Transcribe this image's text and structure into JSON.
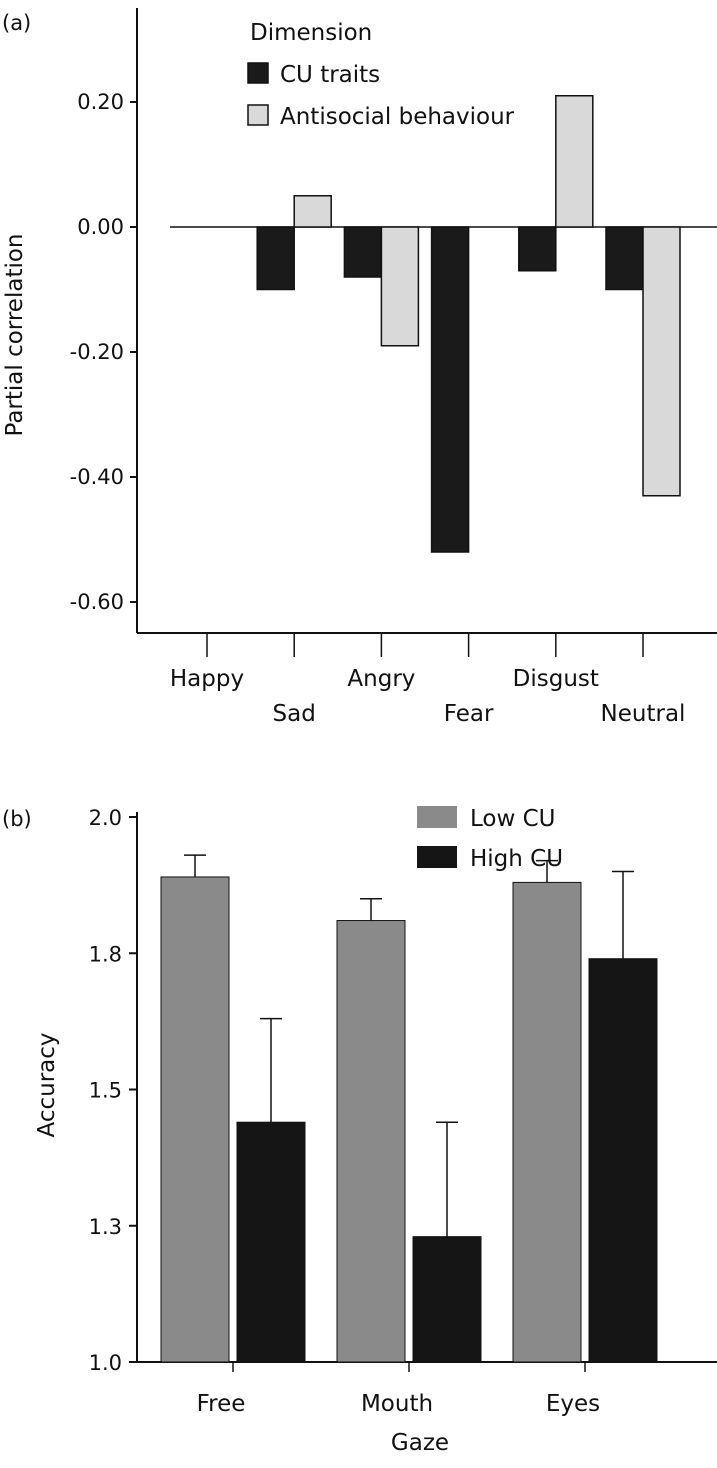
{
  "chart_data": [
    {
      "panel_label": "(a)",
      "type": "bar",
      "ylabel": "Partial correlation",
      "xlabel": "",
      "ylim": [
        -0.66,
        0.33
      ],
      "yticks": [
        "0.20",
        "0.00",
        "-0.20",
        "-0.40",
        "-0.60"
      ],
      "yticks_values": [
        0.2,
        0.0,
        -0.2,
        -0.4,
        -0.6
      ],
      "categories": [
        "Happy",
        "Sad",
        "Angry",
        "Fear",
        "Disgust",
        "Neutral"
      ],
      "legend_title": "Dimension",
      "legend_position": "top-left",
      "series": [
        {
          "name": "CU traits",
          "color": "#1a1a1a",
          "values": [
            0.0,
            -0.1,
            -0.08,
            -0.52,
            -0.07,
            -0.1
          ]
        },
        {
          "name": "Antisocial behaviour",
          "color": "#d9d9d9",
          "values": [
            0.0,
            0.05,
            -0.19,
            0.0,
            0.21,
            -0.43
          ]
        }
      ]
    },
    {
      "panel_label": "(b)",
      "type": "bar",
      "xlabel": "Gaze",
      "ylabel": "Accuracy",
      "ylim": [
        1.0,
        2.0
      ],
      "yticks": [
        "2.0",
        "1.8",
        "1.5",
        "1.3",
        "1.0"
      ],
      "yticks_values": [
        2.0,
        1.75,
        1.5,
        1.25,
        1.0
      ],
      "categories": [
        "Free",
        "Mouth",
        "Eyes"
      ],
      "legend_position": "top-right",
      "series": [
        {
          "name": "Low CU",
          "color": "#8a8a8a",
          "values": [
            1.89,
            1.81,
            1.88
          ],
          "error": [
            0.04,
            0.04,
            0.04
          ]
        },
        {
          "name": "High CU",
          "color": "#151515",
          "values": [
            1.44,
            1.23,
            1.74
          ],
          "error": [
            0.19,
            0.21,
            0.16
          ]
        }
      ]
    }
  ]
}
